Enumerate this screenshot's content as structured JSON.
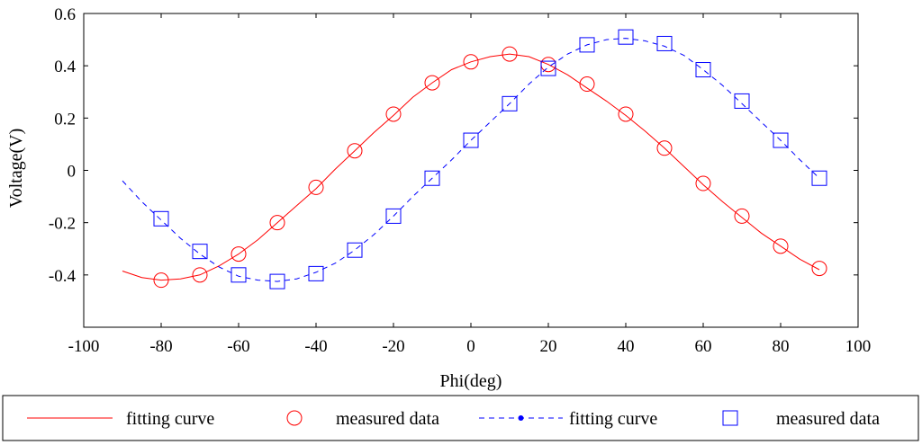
{
  "chart_data": {
    "type": "line",
    "title": "",
    "xlabel": "Phi(deg)",
    "ylabel": "Voltage(V)",
    "xlim": [
      -100,
      100
    ],
    "ylim": [
      -0.6,
      0.6
    ],
    "grid": false,
    "xticks": [
      -100,
      -80,
      -60,
      -40,
      -20,
      0,
      20,
      40,
      60,
      80,
      100
    ],
    "xtick_labels": [
      "-100",
      "-80",
      "-60",
      "-40",
      "-20",
      "0",
      "20",
      "40",
      "60",
      "80",
      "100"
    ],
    "yticks": [
      -0.4,
      -0.2,
      0,
      0.2,
      0.4,
      0.6
    ],
    "ytick_labels": [
      "-0.4",
      "-0.2",
      "0",
      "0.2",
      "0.4",
      "0.6"
    ],
    "legend_position": "bottom",
    "series": [
      {
        "name": "fitting curve",
        "kind": "line",
        "color": "#ff0000",
        "style": "solid",
        "x": [
          -90,
          -85,
          -80,
          -75,
          -70,
          -65,
          -60,
          -55,
          -50,
          -45,
          -40,
          -35,
          -30,
          -25,
          -20,
          -15,
          -10,
          -5,
          0,
          5,
          10,
          15,
          20,
          25,
          30,
          35,
          40,
          45,
          50,
          55,
          60,
          65,
          70,
          75,
          80,
          85,
          90
        ],
        "y": [
          -0.385,
          -0.41,
          -0.42,
          -0.415,
          -0.4,
          -0.365,
          -0.32,
          -0.265,
          -0.2,
          -0.135,
          -0.07,
          0.005,
          0.075,
          0.145,
          0.21,
          0.28,
          0.335,
          0.385,
          0.415,
          0.435,
          0.445,
          0.435,
          0.405,
          0.365,
          0.315,
          0.265,
          0.21,
          0.15,
          0.085,
          0.015,
          -0.055,
          -0.12,
          -0.18,
          -0.24,
          -0.29,
          -0.34,
          -0.38
        ]
      },
      {
        "name": "measured data",
        "kind": "marker",
        "marker": "circle",
        "color": "#ff0000",
        "x": [
          -80,
          -70,
          -60,
          -50,
          -40,
          -30,
          -20,
          -10,
          0,
          10,
          20,
          30,
          40,
          50,
          60,
          70,
          80,
          90
        ],
        "y": [
          -0.42,
          -0.4,
          -0.32,
          -0.2,
          -0.065,
          0.075,
          0.215,
          0.335,
          0.415,
          0.445,
          0.405,
          0.33,
          0.215,
          0.085,
          -0.05,
          -0.175,
          -0.29,
          -0.375
        ]
      },
      {
        "name": "fitting curve",
        "kind": "line",
        "color": "#0000ff",
        "style": "dashed",
        "x": [
          -90,
          -85,
          -80,
          -75,
          -70,
          -65,
          -60,
          -55,
          -50,
          -45,
          -40,
          -35,
          -30,
          -25,
          -20,
          -15,
          -10,
          -5,
          0,
          5,
          10,
          15,
          20,
          25,
          30,
          35,
          40,
          45,
          50,
          55,
          60,
          65,
          70,
          75,
          80,
          85,
          90
        ],
        "y": [
          -0.04,
          -0.12,
          -0.19,
          -0.26,
          -0.32,
          -0.37,
          -0.405,
          -0.42,
          -0.425,
          -0.415,
          -0.39,
          -0.355,
          -0.305,
          -0.245,
          -0.175,
          -0.1,
          -0.03,
          0.04,
          0.115,
          0.185,
          0.255,
          0.33,
          0.395,
          0.445,
          0.48,
          0.5,
          0.505,
          0.495,
          0.475,
          0.44,
          0.385,
          0.325,
          0.255,
          0.185,
          0.115,
          0.04,
          -0.03
        ]
      },
      {
        "name": "measured data",
        "kind": "marker",
        "marker": "square",
        "color": "#0000ff",
        "x": [
          -80,
          -70,
          -60,
          -50,
          -40,
          -30,
          -20,
          -10,
          0,
          10,
          20,
          30,
          40,
          50,
          60,
          70,
          80,
          90
        ],
        "y": [
          -0.185,
          -0.31,
          -0.4,
          -0.425,
          -0.395,
          -0.305,
          -0.175,
          -0.03,
          0.115,
          0.255,
          0.39,
          0.48,
          0.51,
          0.485,
          0.385,
          0.265,
          0.115,
          -0.03
        ]
      }
    ],
    "legend": [
      {
        "label": "fitting curve",
        "type": "line",
        "color": "#ff0000",
        "style": "solid"
      },
      {
        "label": "measured data",
        "type": "circle",
        "color": "#ff0000"
      },
      {
        "label": "fitting curve",
        "type": "line-dot",
        "color": "#0000ff",
        "style": "dashed"
      },
      {
        "label": "measured data",
        "type": "square",
        "color": "#0000ff"
      }
    ]
  }
}
